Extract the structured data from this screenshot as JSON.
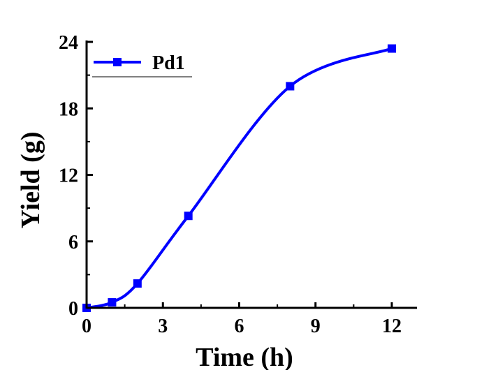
{
  "chart_data": {
    "type": "line",
    "title": "",
    "xlabel": "Time (h)",
    "ylabel": "Yield (g)",
    "xlim": [
      0,
      13
    ],
    "ylim": [
      0,
      24
    ],
    "xticks": [
      0,
      3,
      6,
      9,
      12
    ],
    "xtick_labels": [
      "0",
      "3",
      "6",
      "9",
      "12"
    ],
    "yticks": [
      0,
      6,
      12,
      18,
      24
    ],
    "ytick_labels": [
      "0",
      "6",
      "12",
      "18",
      "24"
    ],
    "grid": false,
    "legend_position": "top-left",
    "series": [
      {
        "name": "Pd1",
        "color": "#0000ff",
        "marker": "square",
        "smooth": true,
        "x": [
          0,
          1,
          2,
          4,
          8,
          12
        ],
        "y": [
          0,
          0.5,
          2.2,
          8.3,
          20.0,
          23.4
        ]
      }
    ]
  }
}
